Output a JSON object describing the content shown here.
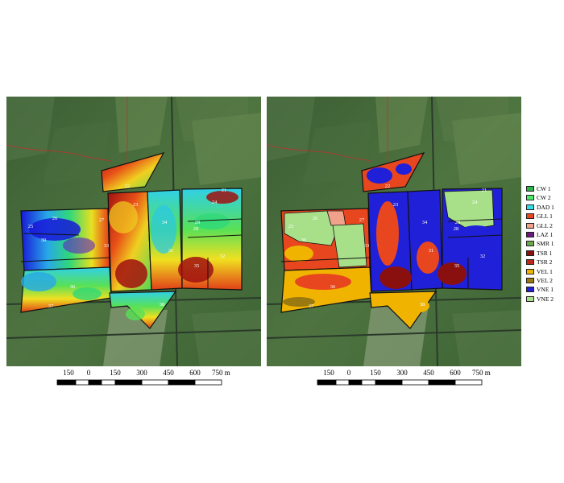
{
  "scale_labels": [
    "150",
    "0",
    "150",
    "300",
    "450",
    "600",
    "750 m"
  ],
  "field_labels_left": [
    "21",
    "22",
    "23",
    "24",
    "25",
    "26",
    "27",
    "28",
    "29",
    "30",
    "31",
    "32",
    "33",
    "34",
    "35",
    "36",
    "37",
    "38"
  ],
  "field_labels_right": [
    "21",
    "22",
    "23",
    "24",
    "25",
    "26",
    "27",
    "28",
    "29",
    "30",
    "31",
    "32",
    "33",
    "34",
    "35",
    "36",
    "37",
    "38"
  ],
  "legend": [
    {
      "label": "CW 1",
      "color": "#2db34a"
    },
    {
      "label": "CW 2",
      "color": "#4de86b"
    },
    {
      "label": "DAD 1",
      "color": "#33dde8"
    },
    {
      "label": "GLL 1",
      "color": "#e8461e"
    },
    {
      "label": "GLL 2",
      "color": "#f0a28a"
    },
    {
      "label": "LAZ 1",
      "color": "#6a1a7a"
    },
    {
      "label": "SMR 1",
      "color": "#6aa84f"
    },
    {
      "label": "TSR 1",
      "color": "#8a1010"
    },
    {
      "label": "TSR 2",
      "color": "#c0281c"
    },
    {
      "label": "VEL 1",
      "color": "#f0b400"
    },
    {
      "label": "VEL 2",
      "color": "#9a7a10"
    },
    {
      "label": "VNE 1",
      "color": "#2020d8"
    },
    {
      "label": "VNE 2",
      "color": "#a8e08a"
    }
  ]
}
